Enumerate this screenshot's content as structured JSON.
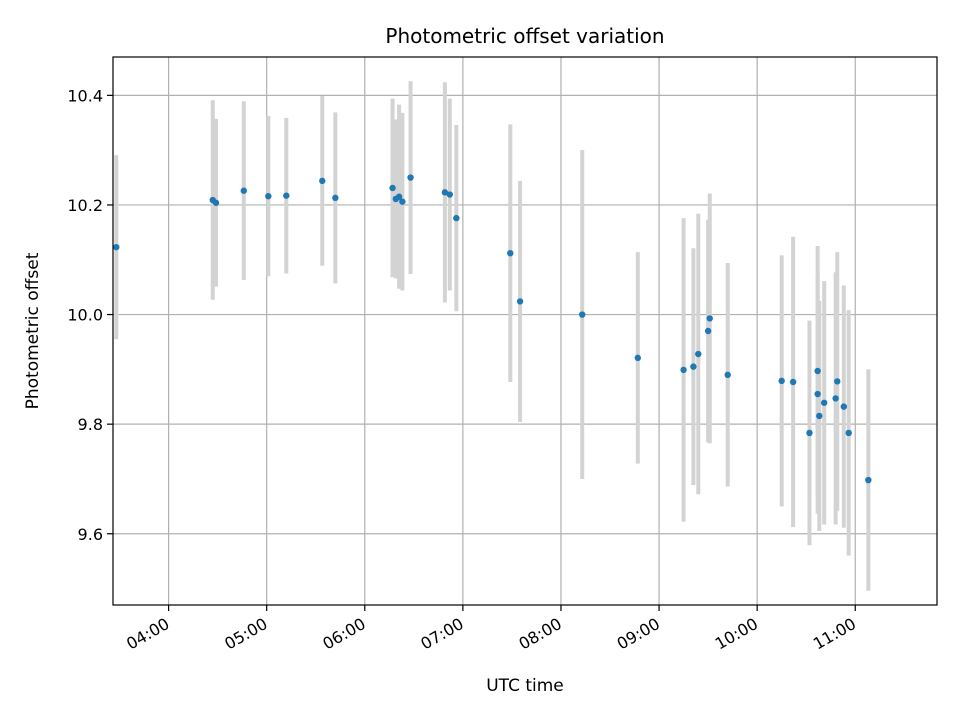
{
  "chart_data": {
    "type": "scatter",
    "title": "Photometric offset variation",
    "xlabel": "UTC time",
    "ylabel": "Photometric offset",
    "x_tick_labels": [
      "04:00",
      "05:00",
      "06:00",
      "07:00",
      "08:00",
      "09:00",
      "10:00",
      "11:00"
    ],
    "y_tick_labels": [
      "9.6",
      "9.8",
      "10.0",
      "10.2",
      "10.4"
    ],
    "xlim": [
      "03:26",
      "11:50"
    ],
    "ylim": [
      9.47,
      10.47
    ],
    "grid": true,
    "colors": {
      "marker": "#1f77b4",
      "errorbar": "#d3d3d3",
      "grid": "#b0b0b0"
    },
    "series": [
      {
        "points": [
          {
            "x": "03:28",
            "y": 10.123,
            "yerr": 0.168
          },
          {
            "x": "04:27",
            "y": 10.209,
            "yerr": 0.182
          },
          {
            "x": "04:29",
            "y": 10.204,
            "yerr": 0.153
          },
          {
            "x": "04:46",
            "y": 10.226,
            "yerr": 0.163
          },
          {
            "x": "05:01",
            "y": 10.216,
            "yerr": 0.146
          },
          {
            "x": "05:12",
            "y": 10.217,
            "yerr": 0.142
          },
          {
            "x": "05:34",
            "y": 10.244,
            "yerr": 0.155
          },
          {
            "x": "05:42",
            "y": 10.213,
            "yerr": 0.156
          },
          {
            "x": "06:17",
            "y": 10.231,
            "yerr": 0.163
          },
          {
            "x": "06:19",
            "y": 10.211,
            "yerr": 0.145
          },
          {
            "x": "06:21",
            "y": 10.215,
            "yerr": 0.168
          },
          {
            "x": "06:23",
            "y": 10.206,
            "yerr": 0.162
          },
          {
            "x": "06:28",
            "y": 10.25,
            "yerr": 0.176
          },
          {
            "x": "06:49",
            "y": 10.223,
            "yerr": 0.201
          },
          {
            "x": "06:52",
            "y": 10.219,
            "yerr": 0.175
          },
          {
            "x": "06:56",
            "y": 10.176,
            "yerr": 0.17
          },
          {
            "x": "07:29",
            "y": 10.112,
            "yerr": 0.235
          },
          {
            "x": "07:35",
            "y": 10.024,
            "yerr": 0.22
          },
          {
            "x": "08:13",
            "y": 10.0,
            "yerr": 0.3
          },
          {
            "x": "08:47",
            "y": 9.921,
            "yerr": 0.193
          },
          {
            "x": "09:15",
            "y": 9.899,
            "yerr": 0.277
          },
          {
            "x": "09:21",
            "y": 9.905,
            "yerr": 0.216
          },
          {
            "x": "09:24",
            "y": 9.928,
            "yerr": 0.256
          },
          {
            "x": "09:30",
            "y": 9.97,
            "yerr": 0.203
          },
          {
            "x": "09:31",
            "y": 9.993,
            "yerr": 0.228
          },
          {
            "x": "09:42",
            "y": 9.89,
            "yerr": 0.204
          },
          {
            "x": "10:15",
            "y": 9.879,
            "yerr": 0.229
          },
          {
            "x": "10:22",
            "y": 9.877,
            "yerr": 0.265
          },
          {
            "x": "10:32",
            "y": 9.784,
            "yerr": 0.205
          },
          {
            "x": "10:37",
            "y": 9.855,
            "yerr": 0.218
          },
          {
            "x": "10:37",
            "y": 9.897,
            "yerr": 0.228
          },
          {
            "x": "10:38",
            "y": 9.815,
            "yerr": 0.21
          },
          {
            "x": "10:41",
            "y": 9.839,
            "yerr": 0.222
          },
          {
            "x": "10:48",
            "y": 9.847,
            "yerr": 0.23
          },
          {
            "x": "10:49",
            "y": 9.878,
            "yerr": 0.236
          },
          {
            "x": "10:53",
            "y": 9.832,
            "yerr": 0.221
          },
          {
            "x": "10:56",
            "y": 9.784,
            "yerr": 0.224
          },
          {
            "x": "11:08",
            "y": 9.698,
            "yerr": 0.202
          }
        ]
      }
    ]
  }
}
